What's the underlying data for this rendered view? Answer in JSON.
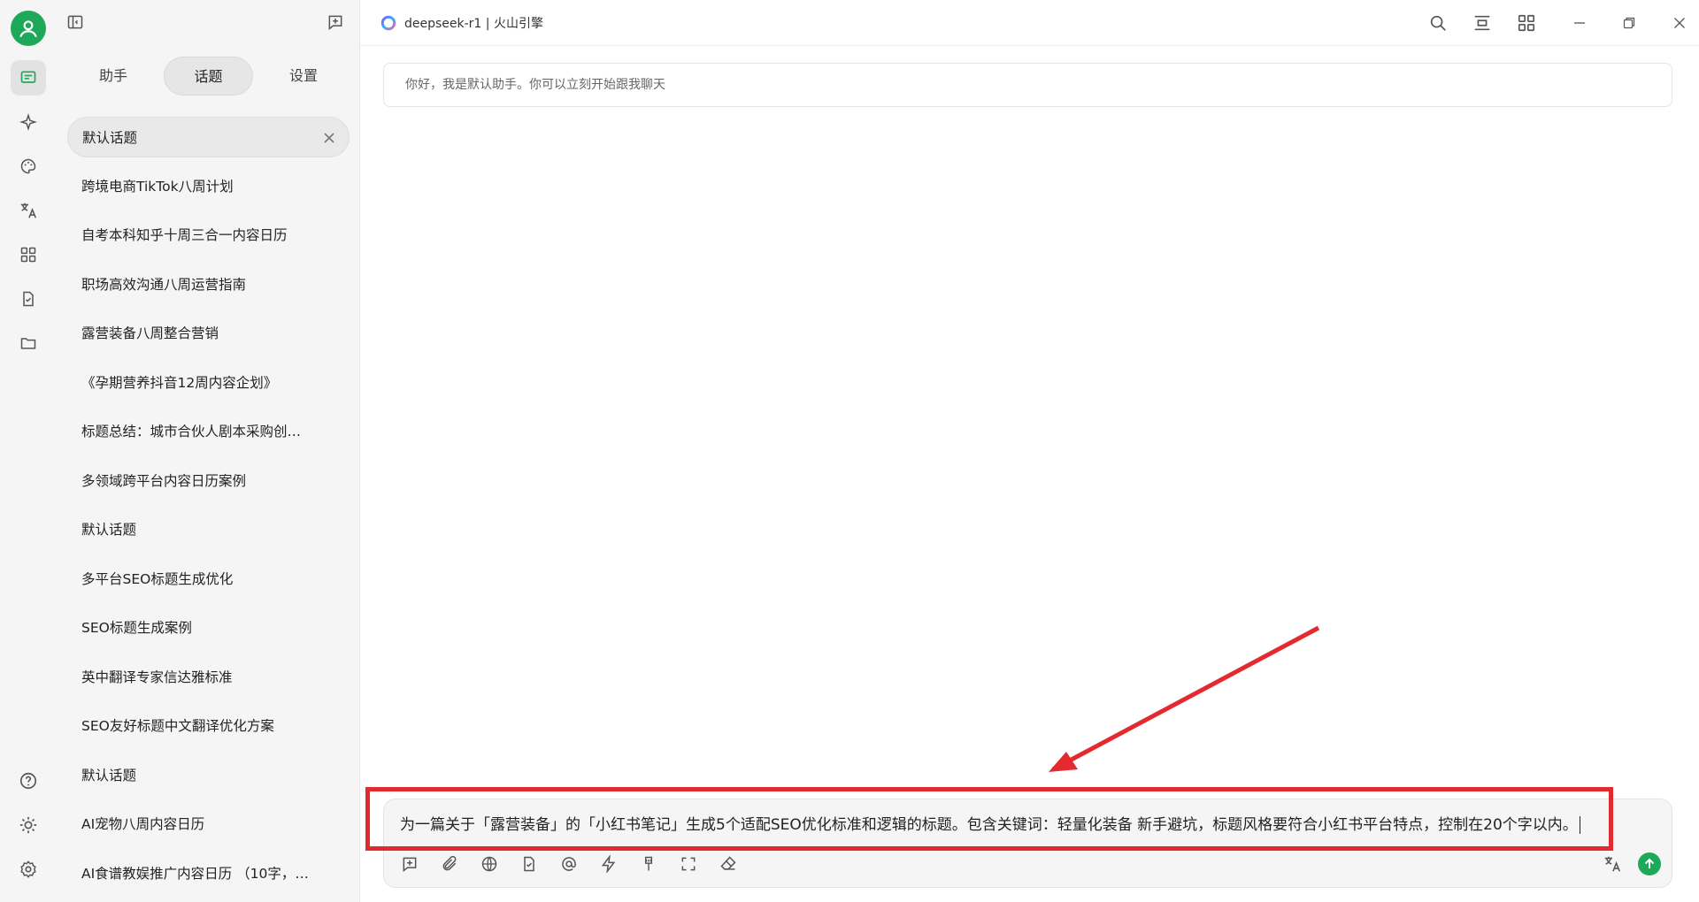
{
  "window": {
    "title": "deepseek-r1 | 火山引擎"
  },
  "rail": {
    "items": [
      {
        "name": "chat",
        "icon": "chat-icon"
      },
      {
        "name": "assistant",
        "icon": "sparkle-icon"
      },
      {
        "name": "palette",
        "icon": "palette-icon"
      },
      {
        "name": "translate",
        "icon": "translate-icon"
      },
      {
        "name": "apps",
        "icon": "grid-icon"
      },
      {
        "name": "files",
        "icon": "file-icon"
      },
      {
        "name": "folder",
        "icon": "folder-icon"
      }
    ],
    "bottom": [
      {
        "name": "help",
        "icon": "help-icon"
      },
      {
        "name": "theme",
        "icon": "sun-icon"
      },
      {
        "name": "settings",
        "icon": "gear-icon"
      }
    ]
  },
  "sidebar": {
    "tabs": [
      {
        "label": "助手"
      },
      {
        "label": "话题",
        "active": true
      },
      {
        "label": "设置"
      }
    ],
    "topics": [
      {
        "label": "默认话题",
        "active": true
      },
      {
        "label": "跨境电商TikTok八周计划"
      },
      {
        "label": "自考本科知乎十周三合一内容日历"
      },
      {
        "label": "职场高效沟通八周运营指南"
      },
      {
        "label": "露营装备八周整合营销"
      },
      {
        "label": "《孕期营养抖音12周内容企划》"
      },
      {
        "label": "标题总结：城市合伙人剧本采购创业…"
      },
      {
        "label": "多领域跨平台内容日历案例"
      },
      {
        "label": "默认话题"
      },
      {
        "label": "多平台SEO标题生成优化"
      },
      {
        "label": "SEO标题生成案例"
      },
      {
        "label": "英中翻译专家信达雅标准"
      },
      {
        "label": "SEO友好标题中文翻译优化方案"
      },
      {
        "label": "默认话题"
      },
      {
        "label": "AI宠物八周内容日历"
      },
      {
        "label": "AI食谱教娱推广内容日历 （10字，中…"
      }
    ]
  },
  "chat": {
    "welcome": "你好，我是默认助手。你可以立刻开始跟我聊天"
  },
  "composer": {
    "value": "为一篇关于「露营装备」的「小红书笔记」生成5个适配SEO优化标准和逻辑的标题。包含关键词：轻量化装备 新手避坑，标题风格要符合小红书平台特点，控制在20个字以内。",
    "tools": [
      "new-topic-icon",
      "attachment-icon",
      "web-search-icon",
      "knowledge-icon",
      "mention-icon",
      "quick-phrase-icon",
      "clear-icon",
      "fullscreen-icon",
      "eraser-icon"
    ]
  },
  "colors": {
    "accent": "#1ea85a",
    "annotation": "#e52a2f"
  }
}
